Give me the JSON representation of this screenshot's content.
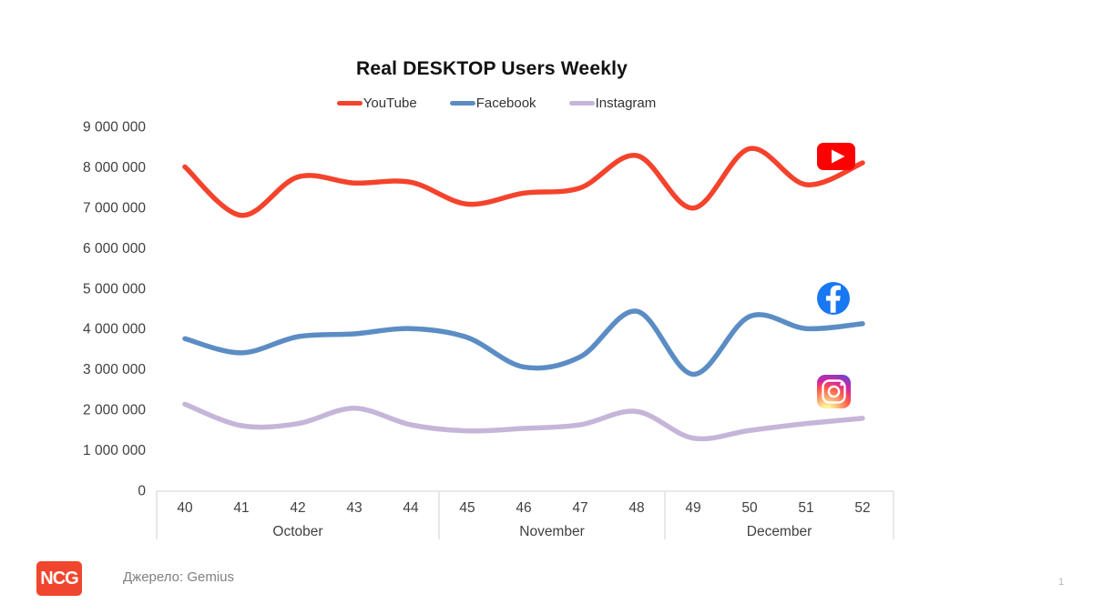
{
  "slide": {
    "title": "Real DESKTOP Users Weekly",
    "source": "Джерело: Gemius",
    "page_number": "1",
    "logo_text": "NCG",
    "logo_color": "#F0462D"
  },
  "chart_data": {
    "type": "line",
    "title": "Real DESKTOP Users Weekly",
    "xlabel": "",
    "ylabel": "",
    "x_weeks": [
      40,
      41,
      42,
      43,
      44,
      45,
      46,
      47,
      48,
      49,
      50,
      51,
      52
    ],
    "month_groups": [
      {
        "label": "October",
        "weeks": [
          40,
          41,
          42,
          43,
          44
        ]
      },
      {
        "label": "November",
        "weeks": [
          45,
          46,
          47,
          48
        ]
      },
      {
        "label": "December",
        "weeks": [
          49,
          50,
          51,
          52
        ]
      }
    ],
    "series": [
      {
        "name": "YouTube",
        "color": "#F4432C",
        "icon": "youtube-icon",
        "values": [
          8000000,
          6800000,
          7750000,
          7600000,
          7620000,
          7080000,
          7350000,
          7480000,
          8280000,
          6980000,
          8450000,
          7560000,
          8100000
        ]
      },
      {
        "name": "Facebook",
        "color": "#5B8DC4",
        "icon": "facebook-icon",
        "values": [
          3750000,
          3400000,
          3800000,
          3870000,
          4000000,
          3780000,
          3050000,
          3300000,
          4430000,
          2870000,
          4300000,
          4000000,
          4120000
        ]
      },
      {
        "name": "Instagram",
        "color": "#C5B6D9",
        "icon": "instagram-icon",
        "values": [
          2130000,
          1600000,
          1650000,
          2030000,
          1620000,
          1470000,
          1530000,
          1620000,
          1950000,
          1290000,
          1480000,
          1650000,
          1780000
        ]
      }
    ],
    "ylim": [
      0,
      9000000
    ],
    "y_tick_values": [
      0,
      1000000,
      2000000,
      3000000,
      4000000,
      5000000,
      6000000,
      7000000,
      8000000,
      9000000
    ],
    "y_tick_labels": [
      "0",
      "1 000 000",
      "2 000 000",
      "3 000 000",
      "4 000 000",
      "5 000 000",
      "6 000 000",
      "7 000 000",
      "8 000 000",
      "9 000 000"
    ],
    "legend_position": "top",
    "grid": false,
    "axis_line_color": "#D9D9D9",
    "tick_label_color": "#404040"
  }
}
